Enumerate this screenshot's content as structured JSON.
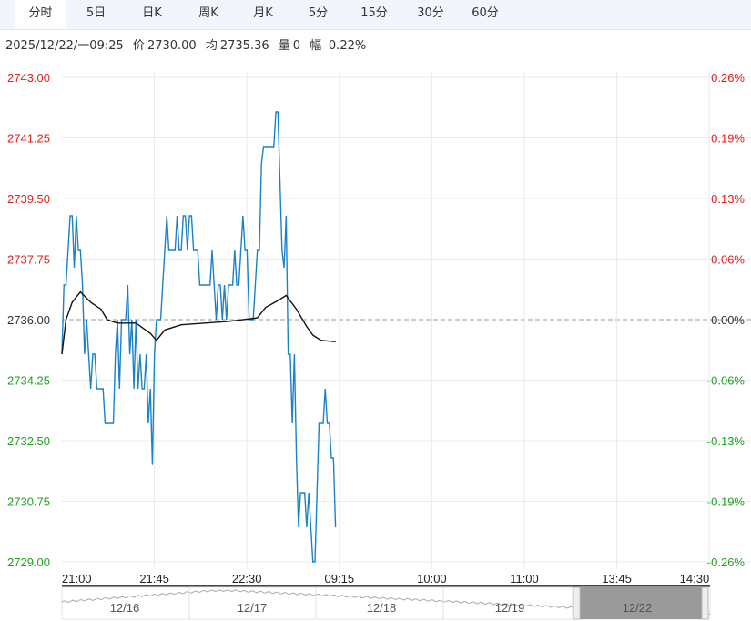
{
  "tabs": [
    {
      "label": "分时",
      "active": true
    },
    {
      "label": "5日"
    },
    {
      "label": "日K"
    },
    {
      "label": "周K"
    },
    {
      "label": "月K"
    },
    {
      "label": "5分"
    },
    {
      "label": "15分"
    },
    {
      "label": "30分"
    },
    {
      "label": "60分"
    }
  ],
  "info": {
    "datetime": "2025/12/22/一09:25",
    "price_label": "价",
    "price": "2730.00",
    "avg_label": "均",
    "avg": "2735.36",
    "vol_label": "量",
    "vol": "0",
    "chg_label": "幅",
    "chg": "-0.22%"
  },
  "colors": {
    "price_line": "#1a82c8",
    "avg_line": "#111111",
    "up": "#e0201b",
    "down": "#21a121",
    "neutral": "#333333",
    "grid": "#e8ebef",
    "nav_selected": "#9a9a9a"
  },
  "chart_data": {
    "type": "line",
    "ylim": [
      2729.0,
      2743.0
    ],
    "base_price": 2736.0,
    "y_ticks": [
      "2743.00",
      "2741.25",
      "2739.50",
      "2737.75",
      "2736.00",
      "2734.25",
      "2732.50",
      "2730.75",
      "2729.00"
    ],
    "pct_ticks": [
      "0.26%",
      "0.19%",
      "0.13%",
      "0.06%",
      "0.00%",
      "-0.06%",
      "-0.13%",
      "-0.19%",
      "-0.26%"
    ],
    "x_ticks": [
      "21:00",
      "21:45",
      "22:30",
      "09:15",
      "10:00",
      "11:00",
      "13:45",
      "14:30"
    ],
    "grid": true,
    "series": [
      {
        "kind": "price",
        "start": "21:00",
        "interval_minutes": 1,
        "values": [
          2735,
          2737,
          2737,
          2738,
          2739,
          2739,
          2737.5,
          2739,
          2738,
          2738,
          2737,
          2735,
          2736,
          2735,
          2734,
          2735,
          2735,
          2734,
          2734,
          2734,
          2734,
          2733,
          2733,
          2733,
          2733,
          2733,
          2735,
          2736,
          2734,
          2736,
          2736,
          2736,
          2737,
          2735,
          2736,
          2734,
          2736,
          2734,
          2735,
          2734,
          2734,
          2735,
          2733,
          2734,
          2731.8,
          2735,
          2736,
          2736,
          2736,
          2737,
          2738,
          2739,
          2738,
          2738,
          2738,
          2738,
          2739,
          2738,
          2738,
          2739,
          2739,
          2738,
          2739,
          2739,
          2738,
          2738,
          2738,
          2737,
          2737,
          2737,
          2737,
          2737,
          2737,
          2738,
          2737,
          2736,
          2737,
          2737,
          2736,
          2737,
          2736,
          2737,
          2737,
          2737,
          2738,
          2737,
          2737,
          2738,
          2739,
          2738,
          2738,
          2736,
          2736,
          2736,
          2737,
          2738,
          2738,
          2740.5,
          2741,
          2741,
          2741,
          2741,
          2741,
          2741,
          2742,
          2742,
          2740,
          2738,
          2737.5,
          2739,
          2735,
          2735,
          2733,
          2735,
          2732,
          2730,
          2731,
          2731,
          2731,
          2730,
          2731,
          2730,
          2729,
          2729,
          2731,
          2733,
          2733,
          2733,
          2734,
          2733,
          2733,
          2732,
          2732,
          2730
        ]
      },
      {
        "kind": "average",
        "points": [
          [
            "21:00",
            2735.0
          ],
          [
            "21:02",
            2736.0
          ],
          [
            "21:05",
            2736.5
          ],
          [
            "21:09",
            2736.8
          ],
          [
            "21:14",
            2736.5
          ],
          [
            "21:19",
            2736.3
          ],
          [
            "21:22",
            2736.0
          ],
          [
            "21:27",
            2735.9
          ],
          [
            "21:36",
            2735.9
          ],
          [
            "21:43",
            2735.6
          ],
          [
            "21:46",
            2735.4
          ],
          [
            "21:50",
            2735.7
          ],
          [
            "21:58",
            2735.85
          ],
          [
            "22:21",
            2735.95
          ],
          [
            "22:35",
            2736.05
          ],
          [
            "22:39",
            2736.35
          ],
          [
            "22:45",
            2736.55
          ],
          [
            "22:49",
            2736.7
          ],
          [
            "22:54",
            2736.3
          ],
          [
            "22:59",
            2735.8
          ],
          [
            "09:02",
            2735.55
          ],
          [
            "09:06",
            2735.4
          ],
          [
            "09:13",
            2735.36
          ]
        ]
      }
    ]
  },
  "navigator": {
    "days": [
      "12/16",
      "12/17",
      "12/18",
      "12/19",
      "12/22"
    ],
    "selected": "12/22"
  }
}
